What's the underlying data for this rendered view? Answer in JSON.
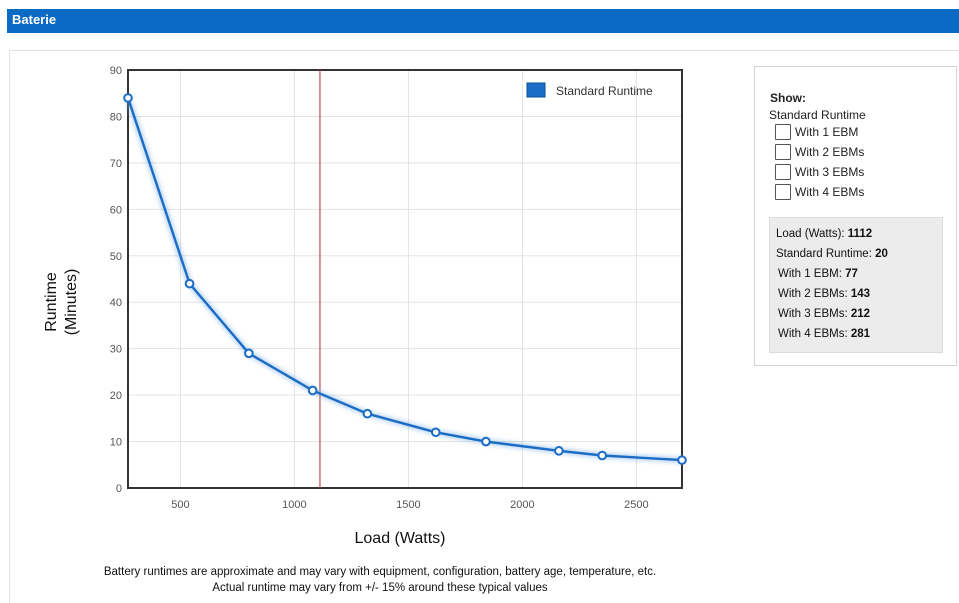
{
  "header": {
    "title": "Baterie"
  },
  "chart_data": {
    "type": "line",
    "xlabel": "Load (Watts)",
    "ylabel_lines": [
      "Runtime",
      "(Minutes)"
    ],
    "xlim": [
      270,
      2700
    ],
    "ylim": [
      0,
      90
    ],
    "xticks": [
      500,
      1000,
      1500,
      2000,
      2500
    ],
    "yticks": [
      0,
      10,
      20,
      30,
      40,
      50,
      60,
      70,
      80,
      90
    ],
    "grid": true,
    "legend_position": "top-right",
    "series": [
      {
        "name": "Standard Runtime",
        "color": "#1a6cc4",
        "x": [
          270,
          540,
          800,
          1080,
          1320,
          1620,
          1840,
          2160,
          2350,
          2700
        ],
        "values": [
          84,
          44,
          29,
          21,
          16,
          12,
          10,
          8,
          7,
          6
        ]
      }
    ],
    "marker_line": {
      "x": 1112,
      "color": "#c0504d"
    }
  },
  "controls": {
    "show_title": "Show:",
    "standard_label": "Standard Runtime",
    "checkboxes": [
      "With 1 EBM",
      "With 2 EBMs",
      "With 3 EBMs",
      "With 4 EBMs"
    ]
  },
  "info": {
    "load_label": "Load (Watts): ",
    "load_value": "1112",
    "std_label": "Standard Runtime: ",
    "std_value": "20",
    "ebm1_label": " With 1 EBM: ",
    "ebm1_value": "77",
    "ebm2_label": " With 2 EBMs: ",
    "ebm2_value": "143",
    "ebm3_label": " With 3 EBMs: ",
    "ebm3_value": "212",
    "ebm4_label": " With 4 EBMs: ",
    "ebm4_value": "281"
  },
  "footnote": {
    "line1": "Battery runtimes are approximate and may vary with equipment, configuration, battery age, temperature, etc.",
    "line2": "Actual runtime may vary from +/- 15% around these typical values"
  }
}
